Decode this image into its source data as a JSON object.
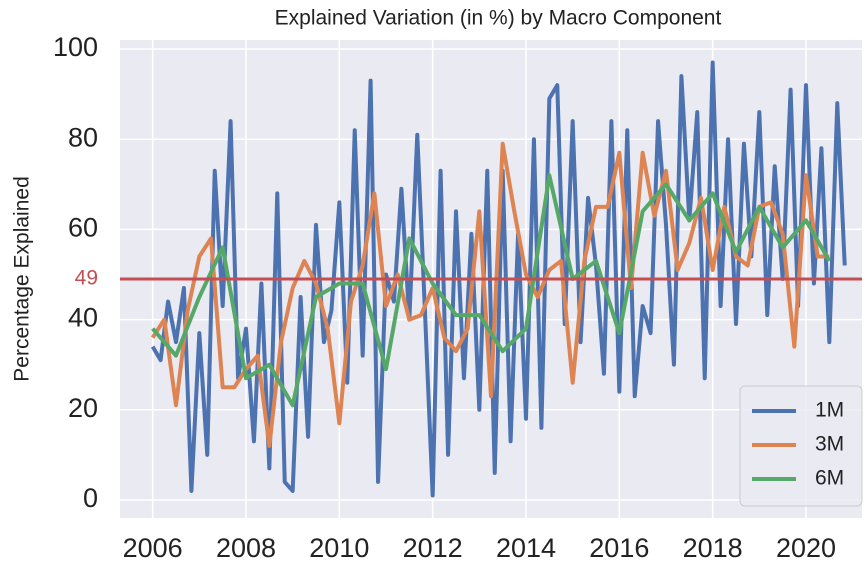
{
  "chart_data": {
    "type": "line",
    "title": "Explained Variation (in %) by Macro Component",
    "y_label": "Percentage Explained",
    "xlim": [
      2005.3,
      2021.2
    ],
    "ylim": [
      -4,
      102
    ],
    "xticks": [
      2006,
      2008,
      2010,
      2012,
      2014,
      2016,
      2018,
      2020
    ],
    "yticks": [
      0,
      20,
      40,
      60,
      80,
      100
    ],
    "grid": true,
    "legend": "lower right",
    "hline": 49,
    "hline_color": "#c44e52",
    "series": [
      {
        "name": "1M",
        "color": "#4c72b0",
        "x": [
          2006,
          2006.17,
          2006.33,
          2006.5,
          2006.67,
          2006.83,
          2007,
          2007.17,
          2007.33,
          2007.5,
          2007.67,
          2007.83,
          2008,
          2008.17,
          2008.33,
          2008.5,
          2008.67,
          2008.83,
          2009,
          2009.17,
          2009.33,
          2009.5,
          2009.67,
          2009.83,
          2010,
          2010.17,
          2010.33,
          2010.5,
          2010.67,
          2010.83,
          2011,
          2011.17,
          2011.33,
          2011.5,
          2011.67,
          2011.83,
          2012,
          2012.17,
          2012.33,
          2012.5,
          2012.67,
          2012.83,
          2013,
          2013.17,
          2013.33,
          2013.5,
          2013.67,
          2013.83,
          2014,
          2014.17,
          2014.33,
          2014.5,
          2014.67,
          2014.83,
          2015,
          2015.17,
          2015.33,
          2015.5,
          2015.67,
          2015.83,
          2016,
          2016.17,
          2016.33,
          2016.5,
          2016.67,
          2016.83,
          2017,
          2017.17,
          2017.33,
          2017.5,
          2017.67,
          2017.83,
          2018,
          2018.17,
          2018.33,
          2018.5,
          2018.67,
          2018.83,
          2019,
          2019.17,
          2019.33,
          2019.5,
          2019.67,
          2019.83,
          2020,
          2020.17,
          2020.33,
          2020.5,
          2020.67,
          2020.83
        ],
        "values": [
          34,
          31,
          44,
          35,
          47,
          2,
          37,
          10,
          73,
          43,
          84,
          27,
          38,
          13,
          48,
          7,
          68,
          4,
          2,
          45,
          14,
          61,
          35,
          42,
          66,
          26,
          82,
          32,
          93,
          4,
          50,
          44,
          69,
          40,
          81,
          43,
          1,
          73,
          10,
          64,
          27,
          59,
          20,
          73,
          6,
          73,
          13,
          59,
          18,
          80,
          16,
          89,
          92,
          39,
          84,
          35,
          67,
          52,
          28,
          84,
          24,
          82,
          23,
          43,
          37,
          84,
          61,
          30,
          94,
          62,
          86,
          27,
          97,
          43,
          80,
          39,
          79,
          54,
          86,
          41,
          74,
          49,
          91,
          43,
          92,
          48,
          78,
          35,
          88,
          52
        ]
      },
      {
        "name": "3M",
        "color": "#dd8452",
        "x": [
          2006,
          2006.25,
          2006.5,
          2006.75,
          2007,
          2007.25,
          2007.5,
          2007.75,
          2008,
          2008.25,
          2008.5,
          2008.75,
          2009,
          2009.25,
          2009.5,
          2009.75,
          2010,
          2010.25,
          2010.5,
          2010.75,
          2011,
          2011.25,
          2011.5,
          2011.75,
          2012,
          2012.25,
          2012.5,
          2012.75,
          2013,
          2013.25,
          2013.5,
          2013.75,
          2014,
          2014.25,
          2014.5,
          2014.75,
          2015,
          2015.25,
          2015.5,
          2015.75,
          2016,
          2016.25,
          2016.5,
          2016.75,
          2017,
          2017.25,
          2017.5,
          2017.75,
          2018,
          2018.25,
          2018.5,
          2018.75,
          2019,
          2019.25,
          2019.5,
          2019.75,
          2020,
          2020.25,
          2020.5
        ],
        "values": [
          36,
          40,
          21,
          42,
          54,
          58,
          25,
          25,
          29,
          32,
          12,
          35,
          47,
          53,
          48,
          38,
          17,
          44,
          52,
          68,
          43,
          50,
          40,
          41,
          47,
          36,
          33,
          38,
          64,
          23,
          79,
          64,
          50,
          45,
          51,
          53,
          26,
          53,
          65,
          65,
          77,
          47,
          77,
          63,
          73,
          51,
          57,
          67,
          51,
          65,
          54,
          52,
          65,
          66,
          59,
          34,
          72,
          54,
          54
        ]
      },
      {
        "name": "6M",
        "color": "#55a868",
        "x": [
          2006,
          2006.5,
          2007,
          2007.5,
          2008,
          2008.5,
          2009,
          2009.5,
          2010,
          2010.5,
          2011,
          2011.5,
          2012,
          2012.5,
          2013,
          2013.5,
          2014,
          2014.5,
          2015,
          2015.5,
          2016,
          2016.5,
          2017,
          2017.5,
          2018,
          2018.5,
          2019,
          2019.5,
          2020,
          2020.5
        ],
        "values": [
          38,
          32,
          45,
          56,
          27,
          30,
          21,
          45,
          48,
          48,
          29,
          58,
          48,
          41,
          41,
          33,
          38,
          72,
          49,
          53,
          37,
          64,
          70,
          62,
          68,
          55,
          65,
          56,
          62,
          53
        ]
      }
    ]
  }
}
